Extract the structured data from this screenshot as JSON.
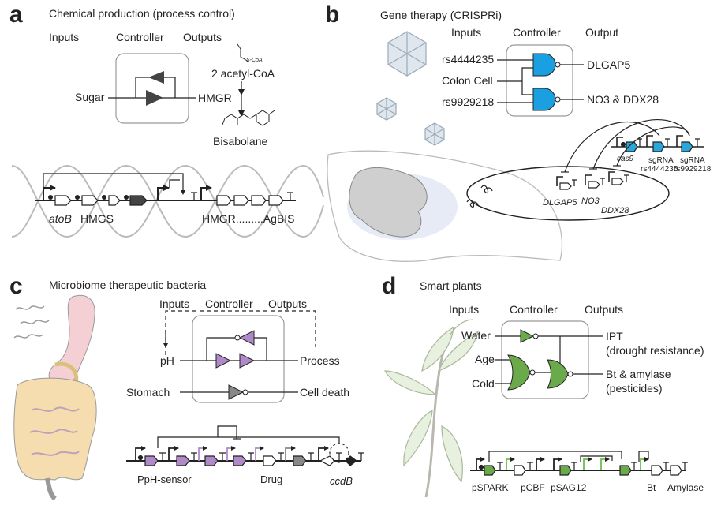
{
  "colors": {
    "nor_blue": "#1aa0e0",
    "gfp_blue": "#2aa7d9",
    "purple": "#b08ac8",
    "green": "#6aaa4a",
    "green_light": "#6bbf4c",
    "dark": "#444444",
    "grey_gate": "#888888",
    "box": "#999999",
    "stomach": "#f4cfd3",
    "intestine": "#f6ddb0",
    "wave": "#bbbbbb"
  },
  "panels": {
    "a": {
      "letter": "a",
      "title": "Chemical production (process control)",
      "inputs": "Inputs",
      "controller": "Controller",
      "outputs": "Outputs",
      "sugar": "Sugar",
      "hmgr": "HMGR",
      "scoa": "S-CoA",
      "acetyl": "2 acetyl-CoA",
      "bisabolane": "Bisabolane",
      "atob": "atoB",
      "hmgs": "HMGS",
      "hmgr_agbis": "HMGR.........AgBIS"
    },
    "b": {
      "letter": "b",
      "title": "Gene therapy (CRISPRi)",
      "inputs": "Inputs",
      "controller": "Controller",
      "output": "Output",
      "in1": "rs4444235",
      "in2": "Colon Cell",
      "in3": "rs9929218",
      "out1": "DLGAP5",
      "out2": "NO3 & DDX28",
      "cas9": "cas9",
      "sg1a": "sgRNA",
      "sg1b": "rs4444235",
      "sg2a": "sgRNA",
      "sg2b": "rs9929218",
      "g1": "DLGAP5",
      "g2": "NO3",
      "g3": "DDX28"
    },
    "c": {
      "letter": "c",
      "title": "Microbiome therapeutic bacteria",
      "inputs": "Inputs",
      "controller": "Controller",
      "outputs": "Outputs",
      "ph": "pH",
      "process": "Process",
      "stomach": "Stomach",
      "death": "Cell death",
      "sensor": "PpH-sensor",
      "drug": "Drug",
      "ccdb": "ccdB"
    },
    "d": {
      "letter": "d",
      "title": "Smart plants",
      "inputs": "Inputs",
      "controller": "Controller",
      "outputs": "Outputs",
      "water": "Water",
      "age": "Age",
      "cold": "Cold",
      "ipt": "IPT",
      "ipt_sub": "(drought resistance)",
      "bt": "Bt & amylase",
      "bt_sub": "(pesticides)",
      "pspark": "pSPARK",
      "pcbf": "pCBF",
      "psag12": "pSAG12",
      "btg": "Bt",
      "amylase": "Amylase"
    }
  }
}
